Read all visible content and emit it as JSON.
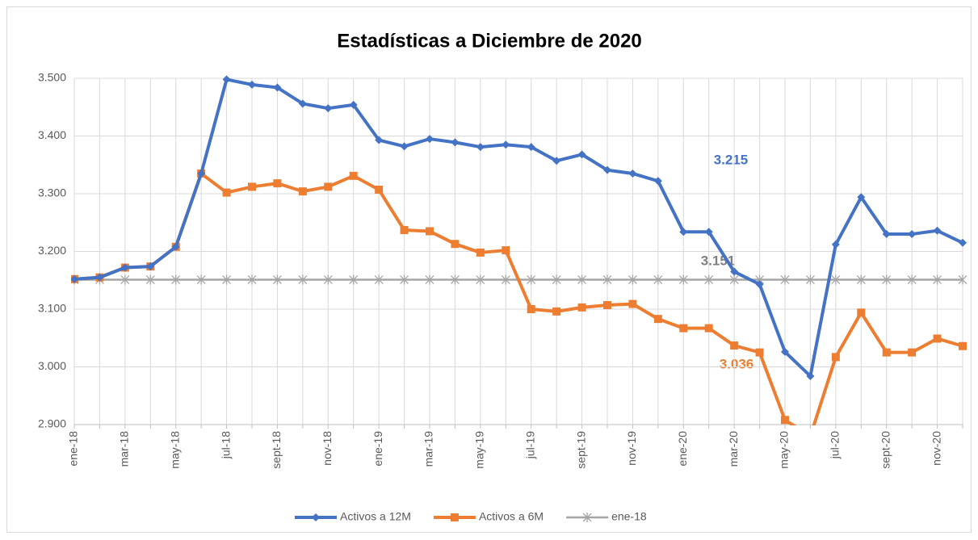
{
  "chart_data": {
    "type": "line",
    "title": "Estadísticas a Diciembre de 2020",
    "categories": [
      "ene-18",
      null,
      "mar-18",
      null,
      "may-18",
      null,
      "jul-18",
      null,
      "sept-18",
      null,
      "nov-18",
      null,
      "ene-19",
      null,
      "mar-19",
      null,
      "may-19",
      null,
      "jul-19",
      null,
      "sept-19",
      null,
      "nov-19",
      null,
      "ene-20",
      null,
      "mar-20",
      null,
      "may-20",
      null,
      "jul-20",
      null,
      "sept-20",
      null,
      "nov-20",
      null
    ],
    "series": [
      {
        "name": "Activos a 12M",
        "color": "#4472c4",
        "marker": "diamond",
        "values": [
          3152,
          3155,
          3172,
          3174,
          3208,
          3335,
          3498,
          3489,
          3484,
          3456,
          3448,
          3454,
          3393,
          3382,
          3395,
          3389,
          3381,
          3385,
          3381,
          3357,
          3368,
          3341,
          3335,
          3322,
          3234,
          3234,
          3165,
          3143,
          3026,
          2984,
          3212,
          3294,
          3230,
          3230,
          3236,
          3215
        ]
      },
      {
        "name": "Activos a 6M",
        "color": "#ed7d31",
        "marker": "square",
        "values": [
          3152,
          3155,
          3172,
          3174,
          3208,
          3335,
          3302,
          3312,
          3318,
          3304,
          3312,
          3331,
          3307,
          3237,
          3235,
          3213,
          3198,
          3202,
          3100,
          3096,
          3103,
          3107,
          3109,
          3083,
          3067,
          3067,
          3037,
          3025,
          2908,
          2880,
          3017,
          3094,
          3025,
          3025,
          3049,
          3036
        ]
      },
      {
        "name": "ene-18",
        "color": "#a5a5a5",
        "marker": "star",
        "values": [
          3151,
          3151,
          3151,
          3151,
          3151,
          3151,
          3151,
          3151,
          3151,
          3151,
          3151,
          3151,
          3151,
          3151,
          3151,
          3151,
          3151,
          3151,
          3151,
          3151,
          3151,
          3151,
          3151,
          3151,
          3151,
          3151,
          3151,
          3151,
          3151,
          3151,
          3151,
          3151,
          3151,
          3151,
          3151,
          3151
        ]
      }
    ],
    "ylim": [
      2900,
      3500
    ],
    "yticks": [
      {
        "value": 2900,
        "label": "2.900"
      },
      {
        "value": 3000,
        "label": "3.000"
      },
      {
        "value": 3100,
        "label": "3.100"
      },
      {
        "value": 3200,
        "label": "3.200"
      },
      {
        "value": 3300,
        "label": "3.300"
      },
      {
        "value": 3400,
        "label": "3.400"
      },
      {
        "value": 3500,
        "label": "3.500"
      }
    ],
    "grid": true,
    "legend": "bottom",
    "annotations": [
      {
        "text": "3.215",
        "color": "#4472c4"
      },
      {
        "text": "3.151",
        "color": "#7f7f7f"
      },
      {
        "text": "3.036",
        "color": "#ed7d31"
      }
    ]
  }
}
